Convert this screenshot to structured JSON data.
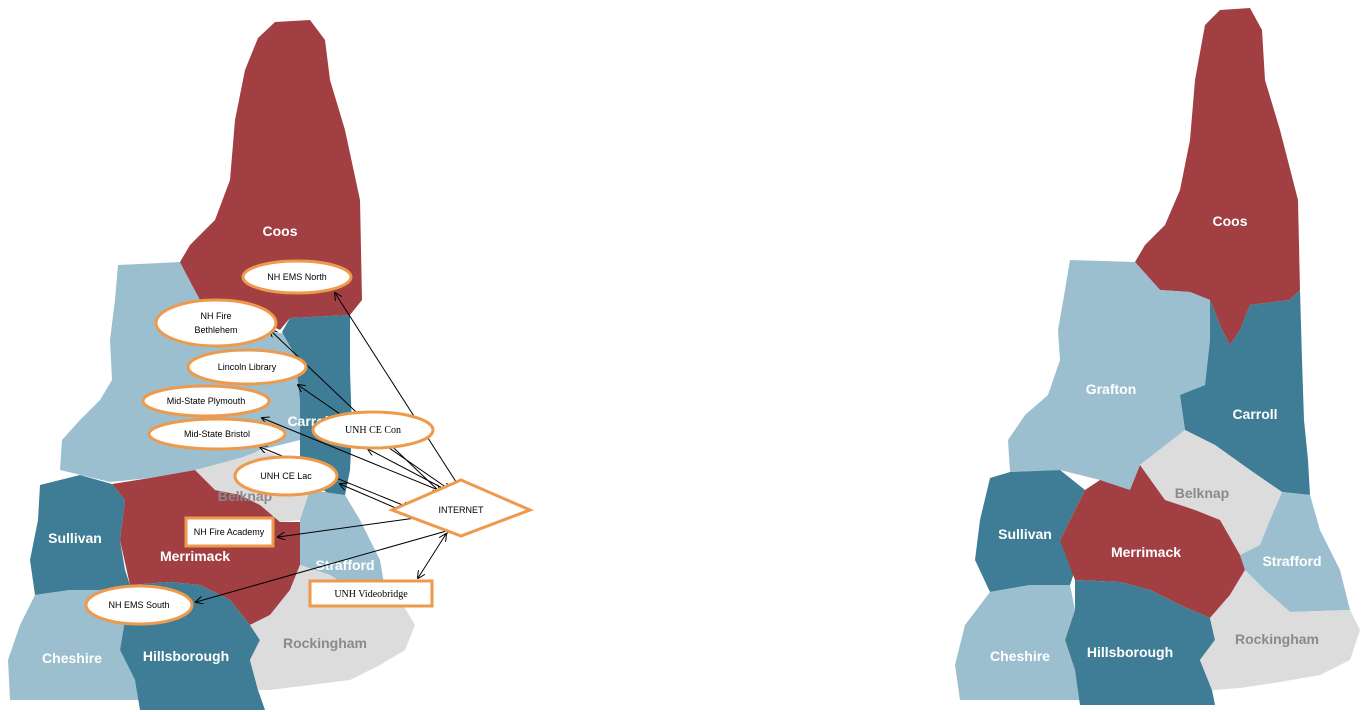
{
  "colors": {
    "red": "#a13f42",
    "light_blue": "#9cbfd0",
    "teal": "#3e7d95",
    "gray": "#dcdcdc",
    "node_border": "#ee9a4d"
  },
  "left_map": {
    "counties": {
      "coos": "Coos",
      "carroll": "Carroll",
      "belknap": "Belknap",
      "sullivan": "Sullivan",
      "merrimack": "Merrimack",
      "strafford": "Strafford",
      "cheshire": "Cheshire",
      "hillsborough": "Hillsborough",
      "rockingham": "Rockingham"
    },
    "nodes": {
      "ems_north": "NH EMS North",
      "fire_bethlehem_1": "NH Fire",
      "fire_bethlehem_2": "Bethlehem",
      "lincoln": "Lincoln Library",
      "plymouth": "Mid-State Plymouth",
      "bristol": "Mid-State Bristol",
      "ce_con": "UNH CE Con",
      "ce_lac": "UNH CE Lac",
      "internet": "INTERNET",
      "fire_academy": "NH Fire Academy",
      "videobridge": "UNH Videobridge",
      "ems_south": "NH EMS South"
    }
  },
  "right_map": {
    "counties": {
      "coos": "Coos",
      "grafton": "Grafton",
      "carroll": "Carroll",
      "belknap": "Belknap",
      "sullivan": "Sullivan",
      "merrimack": "Merrimack",
      "strafford": "Strafford",
      "cheshire": "Cheshire",
      "hillsborough": "Hillsborough",
      "rockingham": "Rockingham"
    }
  }
}
